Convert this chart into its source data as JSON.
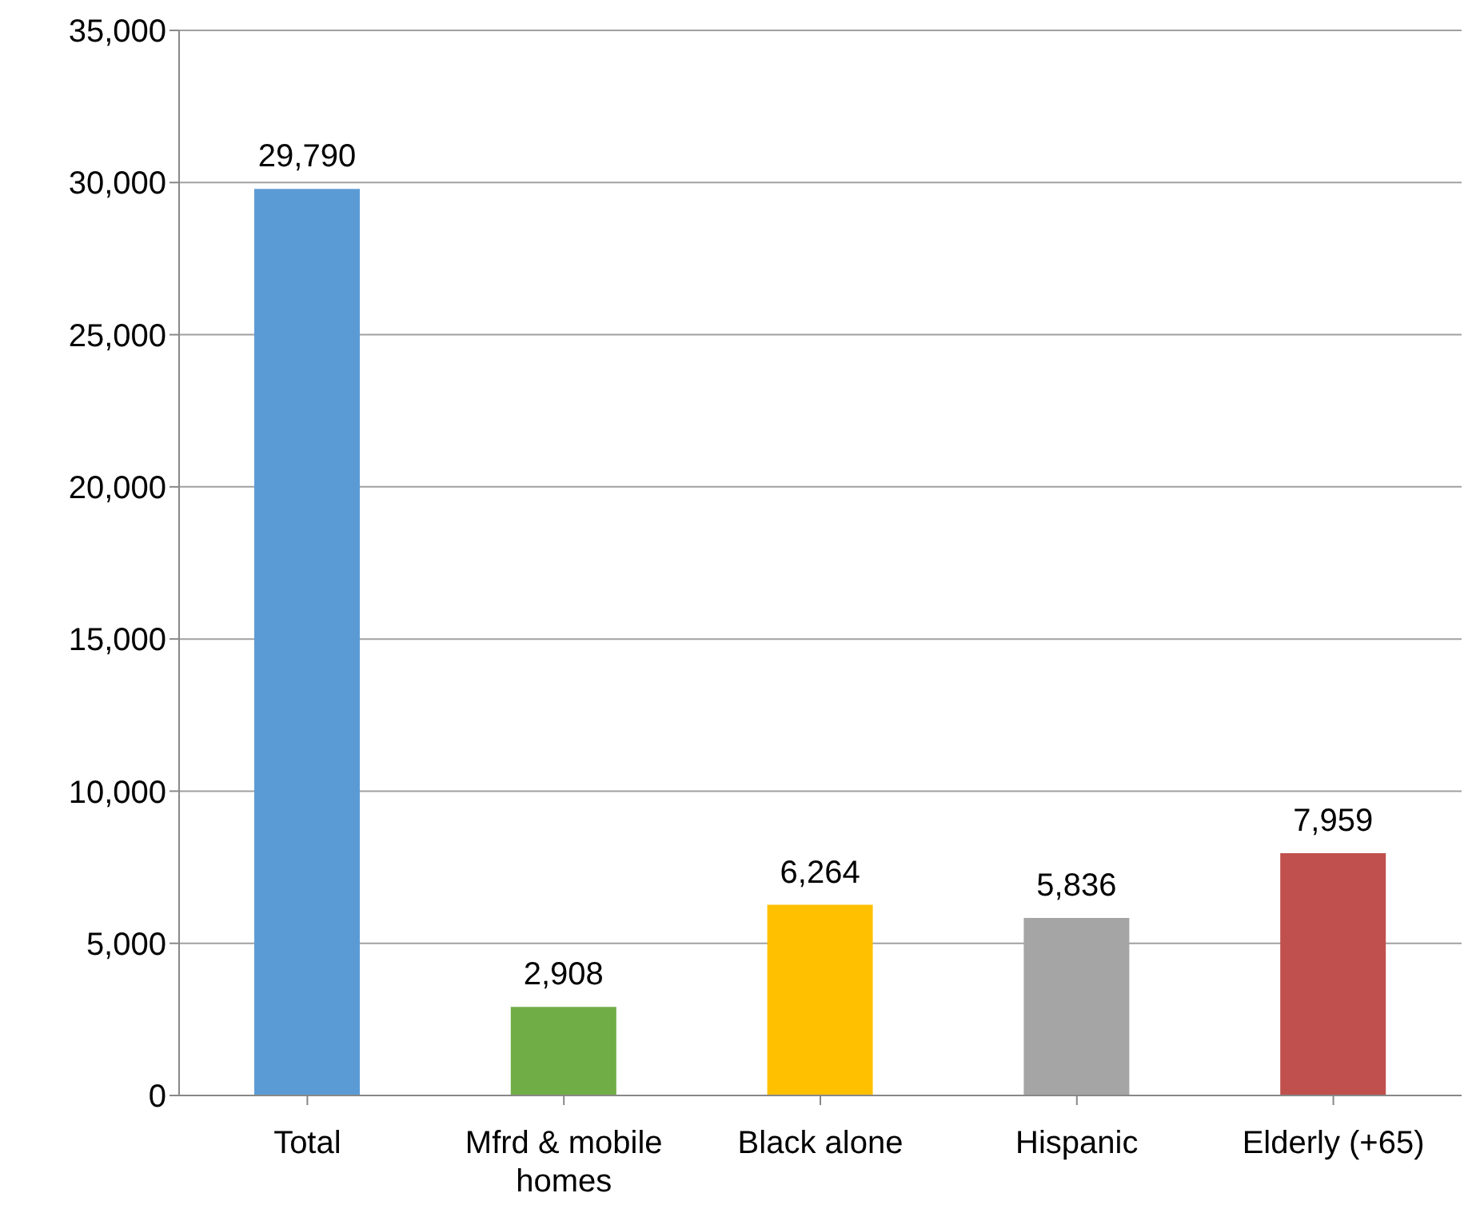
{
  "chart_data": {
    "type": "bar",
    "categories": [
      "Total",
      "Mfrd & mobile homes",
      "Black alone",
      "Hispanic",
      "Elderly (+65)"
    ],
    "values": [
      29790,
      2908,
      6264,
      5836,
      7959
    ],
    "value_labels": [
      "29,790",
      "2,908",
      "6,264",
      "5,836",
      "7,959"
    ],
    "colors": [
      "#5b9bd5",
      "#70ad47",
      "#ffc000",
      "#a5a5a5",
      "#c0504d"
    ],
    "ylim": [
      0,
      35000
    ],
    "yticks": [
      0,
      {
        "value": 5000,
        "label": "5,000"
      },
      {
        "value": 10000,
        "label": "10,000"
      },
      {
        "value": 15000,
        "label": "15,000"
      },
      {
        "value": 20000,
        "label": "20,000"
      },
      {
        "value": 25000,
        "label": "25,000"
      },
      {
        "value": 30000,
        "label": "30,000"
      },
      {
        "value": 35000,
        "label": "35,000"
      }
    ],
    "grid": "y"
  }
}
